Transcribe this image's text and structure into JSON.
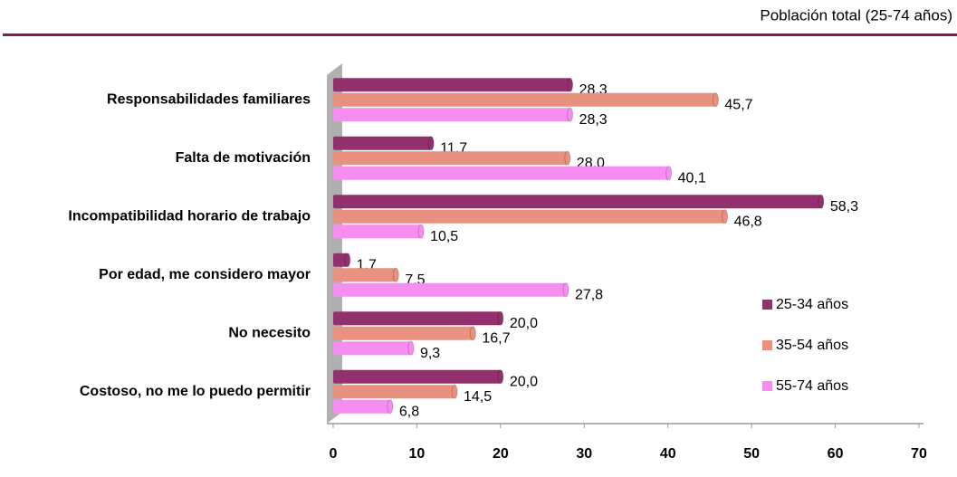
{
  "chart_data": {
    "type": "bar",
    "orientation": "horizontal",
    "subtitle": "Población total (25-74 años)",
    "categories": [
      "Responsabilidades familiares",
      "Falta de motivación",
      "Incompatibilidad horario de trabajo",
      "Por edad, me considero mayor",
      "No necesito",
      "Costoso, no me lo puedo permitir"
    ],
    "series": [
      {
        "name": "25-34 años",
        "color": "#93306e",
        "values": [
          28.3,
          11.7,
          58.3,
          1.7,
          20.0,
          20.0
        ],
        "value_labels": [
          "28,3",
          "11,7",
          "58,3",
          "1,7",
          "20,0",
          "20,0"
        ]
      },
      {
        "name": "35-54 años",
        "color": "#e8917f",
        "values": [
          45.7,
          28.0,
          46.8,
          7.5,
          16.7,
          14.5
        ],
        "value_labels": [
          "45,7",
          "28,0",
          "46,8",
          "7,5",
          "16,7",
          "14,5"
        ]
      },
      {
        "name": "55-74 años",
        "color": "#f58ef0",
        "values": [
          28.3,
          40.1,
          10.5,
          27.8,
          9.3,
          6.8
        ],
        "value_labels": [
          "28,3",
          "40,1",
          "10,5",
          "27,8",
          "9,3",
          "6,8"
        ]
      }
    ],
    "xlim": [
      0,
      70
    ],
    "xticks": [
      0,
      10,
      20,
      30,
      40,
      50,
      60,
      70
    ],
    "legend": "right"
  }
}
